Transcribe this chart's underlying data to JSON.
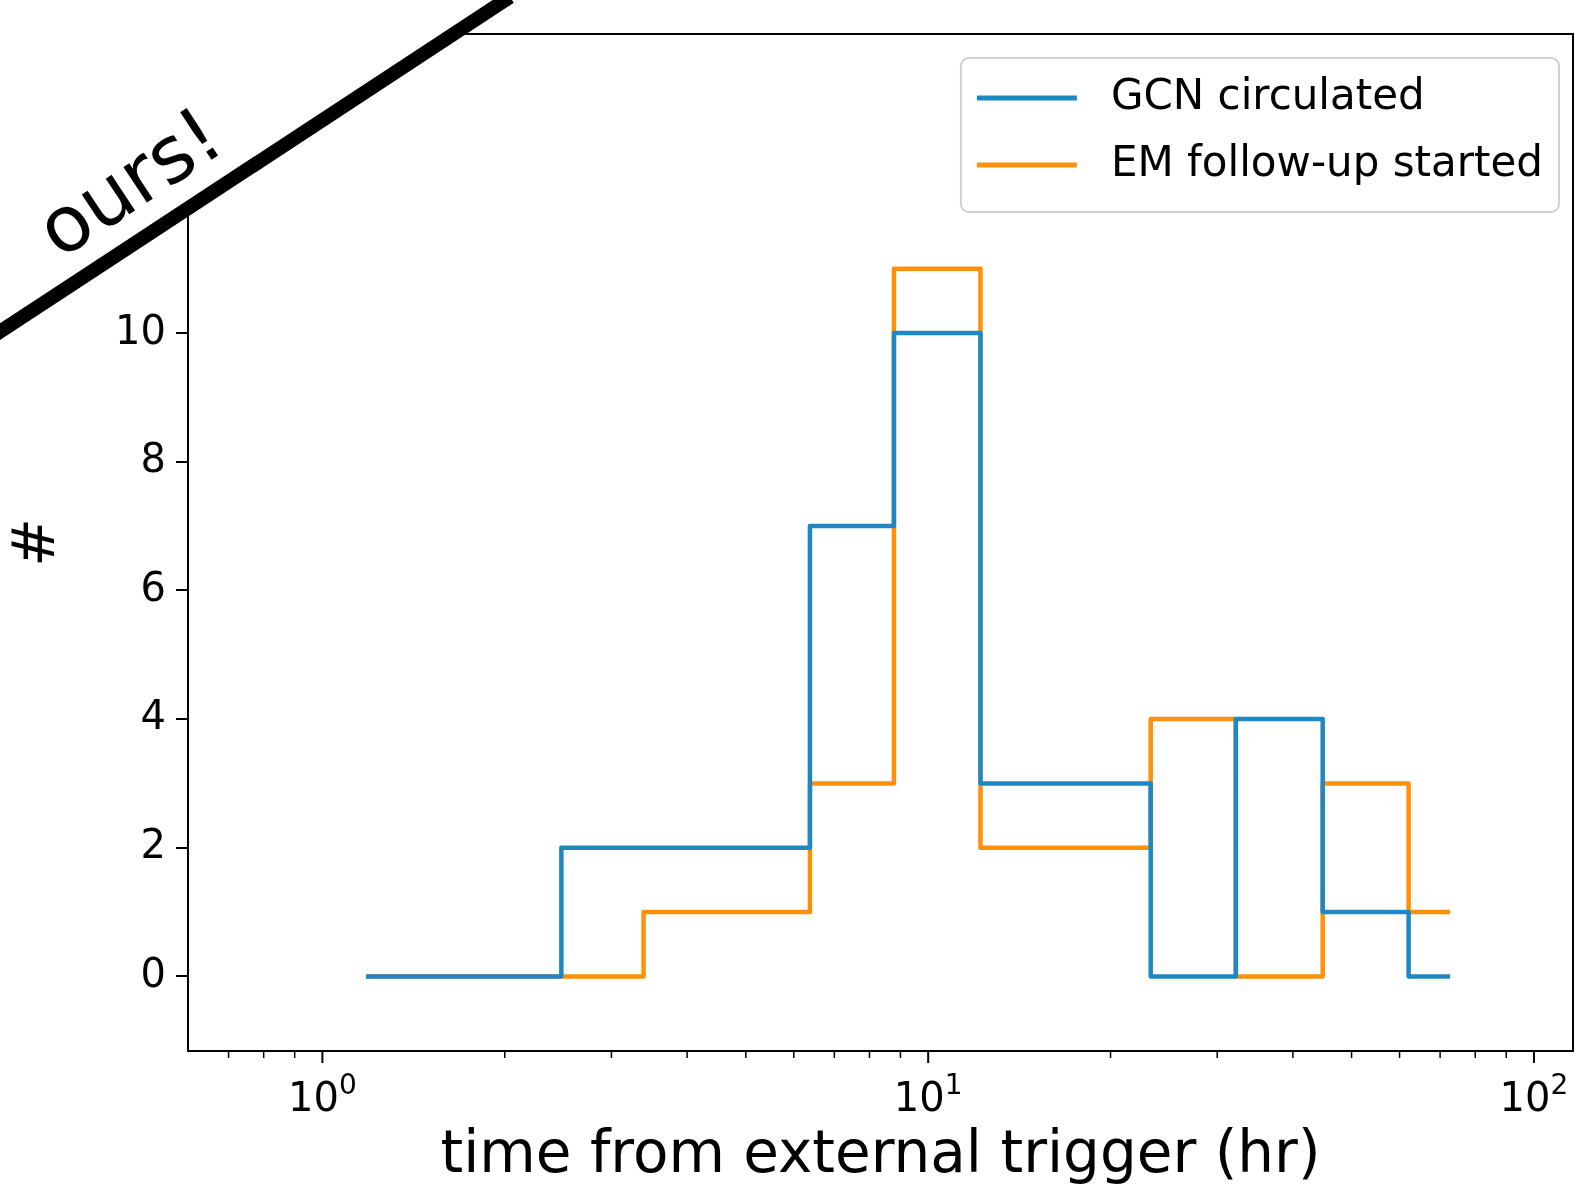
{
  "chart_data": {
    "type": "step",
    "xlabel": "time from external trigger (hr)",
    "ylabel": "#",
    "log": "x",
    "legend": "top right",
    "annotations": [
      "ours!"
    ],
    "x": [
      1.18,
      2.48,
      3.39,
      6.38,
      8.78,
      12.2,
      23.3,
      32.2,
      44.8,
      62.1,
      72.7
    ],
    "series": [
      {
        "name": "GCN circulated",
        "color": "#1f88c2",
        "values": [
          0,
          2,
          2,
          7,
          10,
          3,
          0,
          4,
          1,
          0,
          0
        ]
      },
      {
        "name": "EM follow-up started",
        "color": "#ff9108",
        "values": [
          0,
          0,
          1,
          3,
          11,
          2,
          4,
          0,
          3,
          1,
          1
        ]
      }
    ],
    "xlim": [
      0.612,
      116
    ],
    "xticks": [
      {
        "value": 0.7,
        "label": null
      },
      {
        "value": 0.8,
        "label": null
      },
      {
        "value": 0.9,
        "label": null
      },
      {
        "value": 1,
        "label": "10$^{0}$"
      },
      {
        "value": 2,
        "label": null
      },
      {
        "value": 3,
        "label": null
      },
      {
        "value": 4,
        "label": null
      },
      {
        "value": 5,
        "label": null
      },
      {
        "value": 6,
        "label": null
      },
      {
        "value": 7,
        "label": null
      },
      {
        "value": 8,
        "label": null
      },
      {
        "value": 9,
        "label": null
      },
      {
        "value": 10,
        "label": "10$^{1}$"
      },
      {
        "value": 20,
        "label": null
      },
      {
        "value": 30,
        "label": null
      },
      {
        "value": 40,
        "label": null
      },
      {
        "value": 50,
        "label": null
      },
      {
        "value": 60,
        "label": null
      },
      {
        "value": 70,
        "label": null
      },
      {
        "value": 80,
        "label": null
      },
      {
        "value": 90,
        "label": null
      },
      {
        "value": 100,
        "label": "10$^{2}$"
      }
    ],
    "ylim": [
      -1.16,
      14.65
    ],
    "yticks": [
      0,
      2,
      4,
      6,
      8,
      10
    ]
  }
}
